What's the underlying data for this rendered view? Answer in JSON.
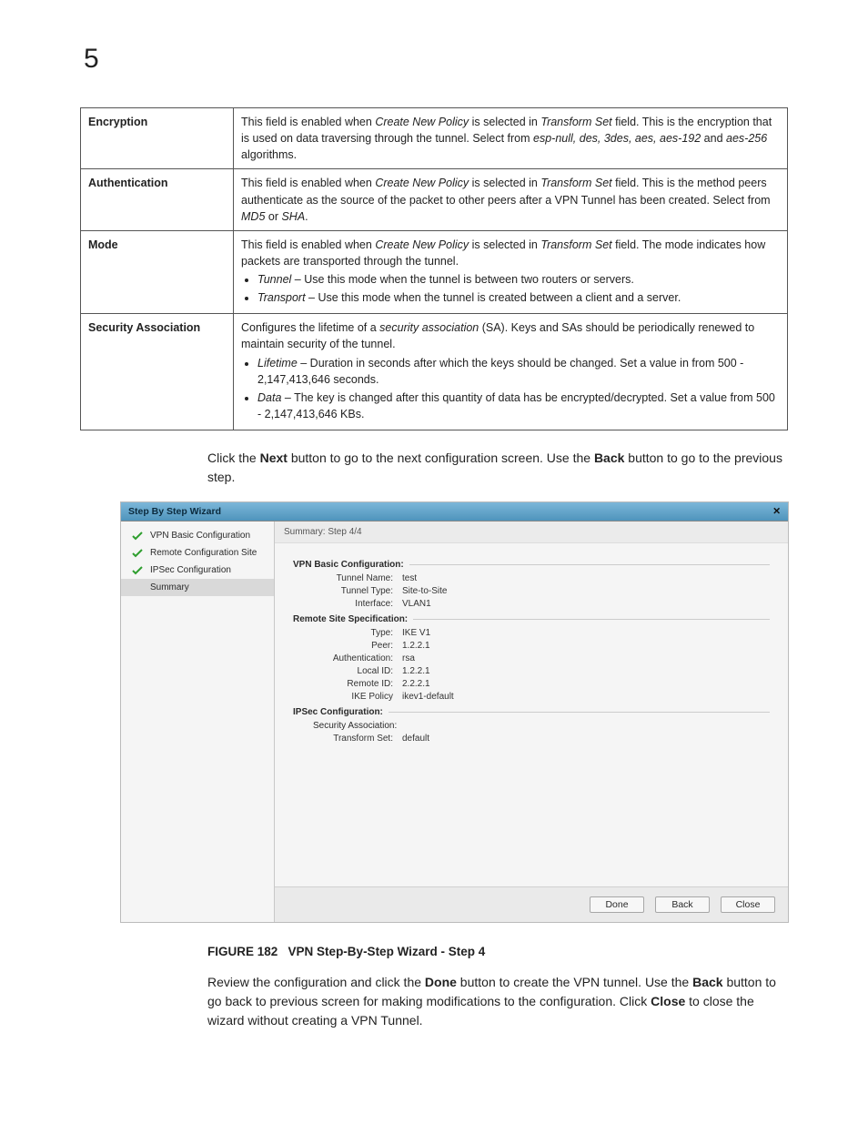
{
  "page_number": "5",
  "table": {
    "rows": [
      {
        "term": "Encryption",
        "desc_parts": [
          {
            "t": "This field is enabled when "
          },
          {
            "t": "Create New Policy",
            "i": true
          },
          {
            "t": " is selected in "
          },
          {
            "t": "Transform Set",
            "i": true
          },
          {
            "t": " field. This is the encryption that is used on data traversing through the tunnel. Select from "
          },
          {
            "t": "esp-null, des, 3des, aes, aes-192",
            "i": true
          },
          {
            "t": " and "
          },
          {
            "t": "aes-256",
            "i": true
          },
          {
            "t": " algorithms."
          }
        ]
      },
      {
        "term": "Authentication",
        "desc_parts": [
          {
            "t": "This field is enabled when "
          },
          {
            "t": "Create New Policy",
            "i": true
          },
          {
            "t": " is selected in "
          },
          {
            "t": "Transform Set",
            "i": true
          },
          {
            "t": " field. This is the method peers authenticate as the source of the packet to other peers after a VPN Tunnel has been created. Select from "
          },
          {
            "t": "MD5",
            "i": true
          },
          {
            "t": " or "
          },
          {
            "t": "SHA",
            "i": true
          },
          {
            "t": "."
          }
        ]
      },
      {
        "term": "Mode",
        "desc_parts": [
          {
            "t": "This field is enabled when "
          },
          {
            "t": "Create New Policy",
            "i": true
          },
          {
            "t": " is selected in "
          },
          {
            "t": "Transform Set",
            "i": true
          },
          {
            "t": " field. The mode indicates how packets are transported through the tunnel."
          }
        ],
        "bullets": [
          [
            {
              "t": "Tunnel",
              "i": true
            },
            {
              "t": " – Use this mode when the tunnel is between two routers or servers."
            }
          ],
          [
            {
              "t": "Transport",
              "i": true
            },
            {
              "t": " – Use this mode when the tunnel is created between a client and a server."
            }
          ]
        ]
      },
      {
        "term": "Security Association",
        "desc_parts": [
          {
            "t": "Configures the lifetime of a "
          },
          {
            "t": "security association",
            "i": true
          },
          {
            "t": " (SA). Keys and SAs should be periodically renewed to maintain security of the tunnel."
          }
        ],
        "bullets": [
          [
            {
              "t": "Lifetime",
              "i": true
            },
            {
              "t": " – Duration in seconds after which the keys should be changed. Set a value in from 500 - 2,147,413,646 seconds."
            }
          ],
          [
            {
              "t": "Data",
              "i": true
            },
            {
              "t": " – The key is changed after this quantity of data has be encrypted/decrypted. Set a value from 500 - 2,147,413,646 KBs."
            }
          ]
        ]
      }
    ]
  },
  "para1_parts": [
    {
      "t": "Click the "
    },
    {
      "t": "Next",
      "b": true
    },
    {
      "t": " button to go to the next configuration screen. Use the "
    },
    {
      "t": "Back",
      "b": true
    },
    {
      "t": " button to go to the previous step."
    }
  ],
  "wizard": {
    "title": "Step By Step Wizard",
    "nav": [
      {
        "label": "VPN Basic Configuration",
        "checked": true
      },
      {
        "label": "Remote Configuration Site",
        "checked": true
      },
      {
        "label": "IPSec Configuration",
        "checked": true
      },
      {
        "label": "Summary",
        "checked": false,
        "selected": true
      }
    ],
    "step_header": "Summary: Step 4/4",
    "sections": [
      {
        "title": "VPN Basic Configuration:",
        "rows": [
          {
            "k": "Tunnel Name:",
            "v": "test"
          },
          {
            "k": "Tunnel Type:",
            "v": "Site-to-Site"
          },
          {
            "k": "Interface:",
            "v": "VLAN1"
          }
        ]
      },
      {
        "title": "Remote Site Specification:",
        "rows": [
          {
            "k": "Type:",
            "v": "IKE V1"
          },
          {
            "k": "Peer:",
            "v": "1.2.2.1"
          },
          {
            "k": "Authentication:",
            "v": "rsa"
          },
          {
            "k": "Local ID:",
            "v": "1.2.2.1"
          },
          {
            "k": "Remote ID:",
            "v": "2.2.2.1"
          },
          {
            "k": "IKE Policy",
            "v": "ikev1-default"
          }
        ]
      },
      {
        "title": "IPSec Configuration:",
        "subline": "Security Association:",
        "rows": [
          {
            "k": "Transform Set:",
            "v": "default"
          }
        ]
      }
    ],
    "buttons": {
      "done": "Done",
      "back": "Back",
      "close": "Close"
    }
  },
  "figure": {
    "label": "FIGURE 182",
    "caption": "VPN Step-By-Step Wizard - Step 4"
  },
  "para2_parts": [
    {
      "t": "Review the configuration and click the "
    },
    {
      "t": "Done",
      "b": true
    },
    {
      "t": " button to create the VPN tunnel. Use the "
    },
    {
      "t": "Back",
      "b": true
    },
    {
      "t": " button to go back to previous screen for making modifications to the configuration. Click "
    },
    {
      "t": "Close",
      "b": true
    },
    {
      "t": " to close the wizard without creating a VPN Tunnel."
    }
  ]
}
